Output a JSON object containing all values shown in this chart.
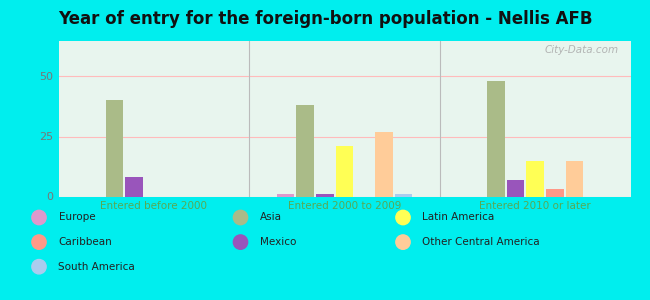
{
  "title": "Year of entry for the foreign-born population - Nellis AFB",
  "groups": [
    "Entered before 2000",
    "Entered 2000 to 2009",
    "Entered 2010 or later"
  ],
  "series": {
    "Europe": {
      "color": "#dd99cc",
      "values": [
        0,
        1,
        0
      ]
    },
    "Caribbean": {
      "color": "#ff9988",
      "values": [
        0,
        0,
        3
      ]
    },
    "South America": {
      "color": "#aaccee",
      "values": [
        0,
        1,
        0
      ]
    },
    "Asia": {
      "color": "#aabb88",
      "values": [
        40,
        38,
        48
      ]
    },
    "Mexico": {
      "color": "#9955bb",
      "values": [
        8,
        1,
        7
      ]
    },
    "Latin America": {
      "color": "#ffff55",
      "values": [
        0,
        21,
        15
      ]
    },
    "Other Central America": {
      "color": "#ffcc99",
      "values": [
        0,
        27,
        15
      ]
    }
  },
  "bar_order": [
    "Europe",
    "Asia",
    "Mexico",
    "Latin America",
    "Caribbean",
    "Other Central America",
    "South America"
  ],
  "ylim": [
    0,
    65
  ],
  "yticks": [
    0,
    25,
    50
  ],
  "plot_bg_top": "#e8f5ee",
  "plot_bg_bottom": "#d8f0e8",
  "figure_bg": "#00eeee",
  "grid_color": "#ffbbbb",
  "title_fontsize": 12,
  "axis_label_color": "#55aa55",
  "ytick_color": "#777777",
  "watermark": "City-Data.com",
  "legend_items": [
    [
      "Europe",
      "#dd99cc"
    ],
    [
      "Caribbean",
      "#ff9988"
    ],
    [
      "South America",
      "#aaccee"
    ],
    [
      "Asia",
      "#aabb88"
    ],
    [
      "Mexico",
      "#9955bb"
    ],
    [
      "Latin America",
      "#ffff55"
    ],
    [
      "Other Central America",
      "#ffcc99"
    ]
  ]
}
